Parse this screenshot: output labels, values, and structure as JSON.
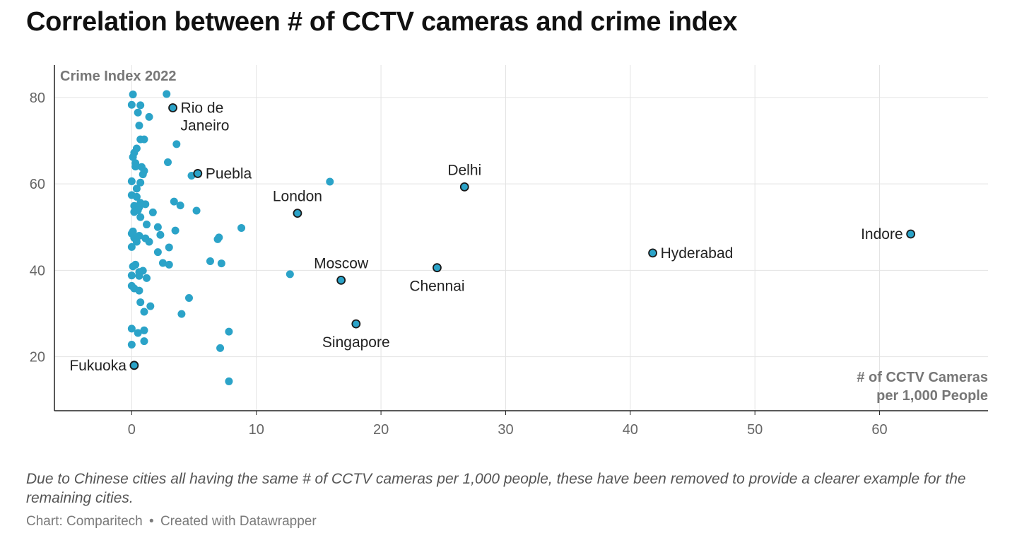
{
  "title": "Correlation between # of CCTV cameras and crime index",
  "note": "Due to Chinese cities all having the same # of CCTV cameras per 1,000 people, these have been removed to provide a clearer example for the remaining cities.",
  "credit": {
    "source": "Chart: Comparitech",
    "separator": "•",
    "tool": "Created with Datawrapper"
  },
  "colors": {
    "point": "#2ba3c8",
    "outline": "#1a1a1a",
    "grid": "#e3e3e3",
    "axis": "#222222"
  },
  "chart_data": {
    "type": "scatter",
    "title": "Correlation between # of CCTV cameras and crime index",
    "xlabel": "# of CCTV Cameras per 1,000 People",
    "xlabel_lines": [
      "# of CCTV Cameras",
      "per 1,000 People"
    ],
    "ylabel": "Crime Index 2022",
    "xlim": [
      -6.2,
      68.7
    ],
    "ylim": [
      7.5,
      87.5
    ],
    "xticks": [
      0,
      10,
      20,
      30,
      40,
      50,
      60
    ],
    "yticks": [
      20,
      40,
      60,
      80
    ],
    "grid": true,
    "labeled_points": [
      {
        "name": "Rio de Janeiro",
        "label_lines": [
          "Rio de",
          "Janeiro"
        ],
        "x": 3.3,
        "y": 77.6,
        "label_pos": "right"
      },
      {
        "name": "Puebla",
        "label_lines": [
          "Puebla"
        ],
        "x": 5.3,
        "y": 62.4,
        "label_pos": "right"
      },
      {
        "name": "London",
        "label_lines": [
          "London"
        ],
        "x": 13.3,
        "y": 53.2,
        "label_pos": "above"
      },
      {
        "name": "Delhi",
        "label_lines": [
          "Delhi"
        ],
        "x": 26.7,
        "y": 59.3,
        "label_pos": "above"
      },
      {
        "name": "Indore",
        "label_lines": [
          "Indore"
        ],
        "x": 62.5,
        "y": 48.4,
        "label_pos": "left"
      },
      {
        "name": "Hyderabad",
        "label_lines": [
          "Hyderabad"
        ],
        "x": 41.8,
        "y": 44.0,
        "label_pos": "right"
      },
      {
        "name": "Moscow",
        "label_lines": [
          "Moscow"
        ],
        "x": 16.8,
        "y": 37.7,
        "label_pos": "above"
      },
      {
        "name": "Chennai",
        "label_lines": [
          "Chennai"
        ],
        "x": 24.5,
        "y": 40.6,
        "label_pos": "below"
      },
      {
        "name": "Singapore",
        "label_lines": [
          "Singapore"
        ],
        "x": 18.0,
        "y": 27.6,
        "label_pos": "below"
      },
      {
        "name": "Fukuoka",
        "label_lines": [
          "Fukuoka"
        ],
        "x": 0.2,
        "y": 18.0,
        "label_pos": "left"
      }
    ],
    "points": [
      [
        0.1,
        80.7
      ],
      [
        2.8,
        80.8
      ],
      [
        0.0,
        78.3
      ],
      [
        0.7,
        78.2
      ],
      [
        0.5,
        76.5
      ],
      [
        1.4,
        75.5
      ],
      [
        0.6,
        73.5
      ],
      [
        0.7,
        70.3
      ],
      [
        1.0,
        70.3
      ],
      [
        3.6,
        69.2
      ],
      [
        0.4,
        68.2
      ],
      [
        0.2,
        67.2
      ],
      [
        0.1,
        66.2
      ],
      [
        2.9,
        65.0
      ],
      [
        0.3,
        64.8
      ],
      [
        0.3,
        64.0
      ],
      [
        0.8,
        63.9
      ],
      [
        1.0,
        63.0
      ],
      [
        0.9,
        62.2
      ],
      [
        4.8,
        61.9
      ],
      [
        0.0,
        60.6
      ],
      [
        0.7,
        60.3
      ],
      [
        15.9,
        60.5
      ],
      [
        0.4,
        58.9
      ],
      [
        0.0,
        57.4
      ],
      [
        0.4,
        57.0
      ],
      [
        3.4,
        55.9
      ],
      [
        0.7,
        55.6
      ],
      [
        1.1,
        55.3
      ],
      [
        0.2,
        54.9
      ],
      [
        3.9,
        55.0
      ],
      [
        0.6,
        54.6
      ],
      [
        0.5,
        53.9
      ],
      [
        0.2,
        53.5
      ],
      [
        1.7,
        53.4
      ],
      [
        5.2,
        53.8
      ],
      [
        0.7,
        52.3
      ],
      [
        1.2,
        50.6
      ],
      [
        8.8,
        49.8
      ],
      [
        2.1,
        50.0
      ],
      [
        0.1,
        49.0
      ],
      [
        3.5,
        49.2
      ],
      [
        0.0,
        48.5
      ],
      [
        0.6,
        48.0
      ],
      [
        2.3,
        48.2
      ],
      [
        0.2,
        47.5
      ],
      [
        1.1,
        47.4
      ],
      [
        7.0,
        47.6
      ],
      [
        6.9,
        47.2
      ],
      [
        0.4,
        46.6
      ],
      [
        1.4,
        46.6
      ],
      [
        0.0,
        45.4
      ],
      [
        3.0,
        45.3
      ],
      [
        2.1,
        44.2
      ],
      [
        6.3,
        42.1
      ],
      [
        7.2,
        41.6
      ],
      [
        2.5,
        41.7
      ],
      [
        3.0,
        41.3
      ],
      [
        0.3,
        41.3
      ],
      [
        0.1,
        40.9
      ],
      [
        0.9,
        39.9
      ],
      [
        0.6,
        39.6
      ],
      [
        12.7,
        39.1
      ],
      [
        0.0,
        38.8
      ],
      [
        0.6,
        38.7
      ],
      [
        1.2,
        38.2
      ],
      [
        0.0,
        36.4
      ],
      [
        0.2,
        35.8
      ],
      [
        0.6,
        35.3
      ],
      [
        4.6,
        33.6
      ],
      [
        0.7,
        32.6
      ],
      [
        1.5,
        31.7
      ],
      [
        1.0,
        30.4
      ],
      [
        4.0,
        29.9
      ],
      [
        0.0,
        26.5
      ],
      [
        1.0,
        26.1
      ],
      [
        7.8,
        25.8
      ],
      [
        0.5,
        25.5
      ],
      [
        1.0,
        23.6
      ],
      [
        0.0,
        22.8
      ],
      [
        7.1,
        22.0
      ],
      [
        7.8,
        14.3
      ]
    ]
  }
}
